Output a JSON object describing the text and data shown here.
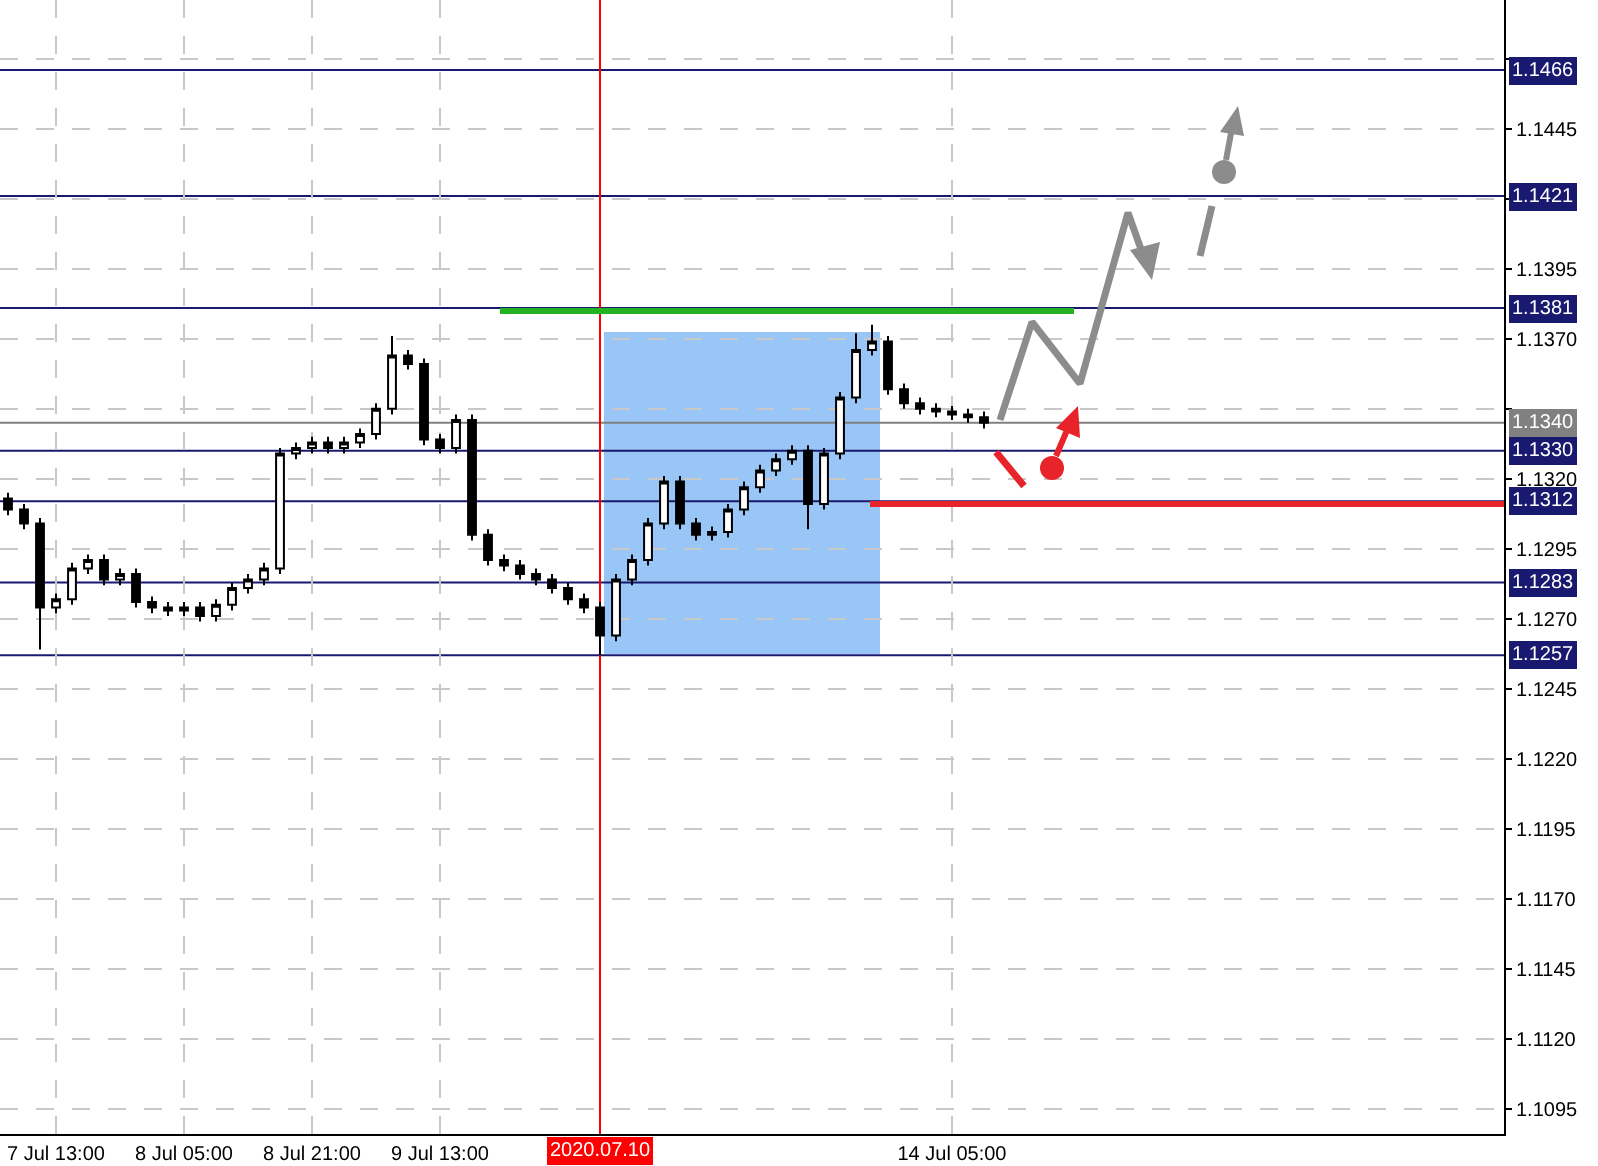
{
  "chart_data": {
    "type": "candlestick",
    "categories": [
      null,
      null,
      null,
      "7 Jul 13:00",
      null,
      null,
      null,
      null,
      null,
      null,
      null,
      "8 Jul 05:00",
      null,
      null,
      null,
      null,
      null,
      null,
      null,
      "8 Jul 21:00",
      null,
      null,
      null,
      null,
      null,
      null,
      null,
      "9 Jul 13:00",
      null,
      null,
      null,
      null,
      null,
      null,
      null,
      null,
      null,
      "2020.07.10",
      null,
      null,
      null,
      null,
      null,
      null,
      null,
      null,
      null,
      null,
      null,
      null,
      null,
      null,
      null,
      null,
      null,
      null,
      null,
      null,
      null,
      "14 Jul 05:00",
      null,
      null,
      null,
      null,
      null,
      null,
      null,
      null,
      null,
      null,
      null,
      null,
      null,
      null,
      null,
      null,
      null,
      null,
      null,
      null,
      null,
      null,
      null,
      null,
      null,
      null,
      null,
      null,
      null,
      null,
      null,
      null,
      null,
      null
    ],
    "ohlc": [
      [
        1.1313,
        1.1315,
        1.1307,
        1.1309
      ],
      [
        1.1309,
        1.1311,
        1.1302,
        1.1304
      ],
      [
        1.1304,
        1.1306,
        1.1259,
        1.1274
      ],
      [
        1.1274,
        1.1279,
        1.1272,
        1.1277
      ],
      [
        1.1277,
        1.129,
        1.1275,
        1.1288
      ],
      [
        1.1288,
        1.1293,
        1.1286,
        1.1291
      ],
      [
        1.1291,
        1.1293,
        1.1282,
        1.1284
      ],
      [
        1.1284,
        1.1288,
        1.1282,
        1.1286
      ],
      [
        1.1286,
        1.1288,
        1.1274,
        1.1276
      ],
      [
        1.1276,
        1.1278,
        1.1272,
        1.1274
      ],
      [
        1.1274,
        1.1276,
        1.1271,
        1.1273
      ],
      [
        1.1273,
        1.1276,
        1.1271,
        1.1274
      ],
      [
        1.1274,
        1.1276,
        1.1269,
        1.1271
      ],
      [
        1.1271,
        1.1277,
        1.1269,
        1.1275
      ],
      [
        1.1275,
        1.1283,
        1.1273,
        1.1281
      ],
      [
        1.1281,
        1.1286,
        1.1279,
        1.1284
      ],
      [
        1.1284,
        1.129,
        1.1282,
        1.1288
      ],
      [
        1.1288,
        1.1331,
        1.1286,
        1.1329
      ],
      [
        1.1329,
        1.1333,
        1.1327,
        1.1331
      ],
      [
        1.1331,
        1.1335,
        1.1329,
        1.1333
      ],
      [
        1.1333,
        1.1335,
        1.1329,
        1.1331
      ],
      [
        1.1331,
        1.1335,
        1.1329,
        1.1333
      ],
      [
        1.1333,
        1.1338,
        1.1331,
        1.1336
      ],
      [
        1.1336,
        1.1347,
        1.1334,
        1.1345
      ],
      [
        1.1345,
        1.1371,
        1.1343,
        1.1364
      ],
      [
        1.1364,
        1.1366,
        1.1359,
        1.1361
      ],
      [
        1.1361,
        1.1363,
        1.1332,
        1.1334
      ],
      [
        1.1334,
        1.1336,
        1.1329,
        1.1331
      ],
      [
        1.1331,
        1.1343,
        1.1329,
        1.1341
      ],
      [
        1.1341,
        1.1343,
        1.1298,
        1.13
      ],
      [
        1.13,
        1.1302,
        1.1289,
        1.1291
      ],
      [
        1.1291,
        1.1293,
        1.1287,
        1.1289
      ],
      [
        1.1289,
        1.1291,
        1.1284,
        1.1286
      ],
      [
        1.1286,
        1.1288,
        1.1282,
        1.1284
      ],
      [
        1.1284,
        1.1286,
        1.1279,
        1.1281
      ],
      [
        1.1281,
        1.1283,
        1.1275,
        1.1277
      ],
      [
        1.1277,
        1.1279,
        1.1272,
        1.1274
      ],
      [
        1.1274,
        1.1276,
        1.1257,
        1.1264
      ],
      [
        1.1264,
        1.1286,
        1.1262,
        1.1284
      ],
      [
        1.1284,
        1.1293,
        1.1282,
        1.1291
      ],
      [
        1.1291,
        1.1306,
        1.1289,
        1.1304
      ],
      [
        1.1304,
        1.1321,
        1.1302,
        1.1319
      ],
      [
        1.1319,
        1.1321,
        1.1302,
        1.1304
      ],
      [
        1.1304,
        1.1306,
        1.1298,
        1.13
      ],
      [
        1.13,
        1.1303,
        1.1298,
        1.1301
      ],
      [
        1.1301,
        1.1311,
        1.1299,
        1.1309
      ],
      [
        1.1309,
        1.1319,
        1.1307,
        1.1317
      ],
      [
        1.1317,
        1.1325,
        1.1315,
        1.1323
      ],
      [
        1.1323,
        1.1329,
        1.1321,
        1.1327
      ],
      [
        1.1327,
        1.1332,
        1.1325,
        1.133
      ],
      [
        1.133,
        1.1332,
        1.1302,
        1.1311
      ],
      [
        1.1311,
        1.1331,
        1.1309,
        1.1329
      ],
      [
        1.1329,
        1.1351,
        1.1327,
        1.1349
      ],
      [
        1.1349,
        1.1372,
        1.1347,
        1.1366
      ],
      [
        1.1366,
        1.1375,
        1.1364,
        1.1369
      ],
      [
        1.1369,
        1.1371,
        1.135,
        1.1352
      ],
      [
        1.1352,
        1.1354,
        1.1345,
        1.1347
      ],
      [
        1.1347,
        1.1349,
        1.1343,
        1.1345
      ],
      [
        1.1345,
        1.1347,
        1.1342,
        1.1344
      ],
      [
        1.1344,
        1.1346,
        1.1341,
        1.1343
      ],
      [
        1.1343,
        1.1345,
        1.134,
        1.1342
      ],
      [
        1.1342,
        1.1344,
        1.1338,
        1.134
      ],
      null,
      null,
      null,
      null,
      null,
      null,
      null,
      null,
      null,
      null,
      null,
      null,
      null,
      null,
      null,
      null,
      null,
      null,
      null,
      null,
      null,
      null,
      null,
      null,
      null,
      null,
      null,
      null,
      null,
      null,
      null,
      null
    ],
    "series": [
      {
        "type": "line",
        "color": "#8c8c8c",
        "values": [
          null,
          null,
          null,
          null,
          null,
          null,
          null,
          null,
          null,
          null,
          null,
          null,
          null,
          null,
          null,
          null,
          null,
          null,
          null,
          null,
          null,
          null,
          null,
          null,
          null,
          null,
          null,
          null,
          null,
          null,
          null,
          null,
          null,
          null,
          null,
          null,
          null,
          null,
          null,
          null,
          null,
          null,
          null,
          null,
          null,
          null,
          null,
          null,
          null,
          null,
          null,
          null,
          null,
          null,
          null,
          null,
          null,
          null,
          null,
          null,
          null,
          null,
          1.1341,
          null,
          1.1376,
          null,
          null,
          1.1354,
          null,
          null,
          1.1415,
          1.1399,
          null,
          null,
          null,
          null,
          null,
          null,
          null,
          null,
          null,
          null,
          null,
          null,
          null,
          null,
          null,
          null,
          null,
          null,
          null,
          null,
          null,
          null
        ]
      }
    ],
    "ylim": [
      1.1086,
      1.1491
    ],
    "yticks": [
      1.1095,
      {
        "value": 1.112,
        "label": "1.1120"
      },
      1.1145,
      {
        "value": 1.117,
        "label": "1.1170"
      },
      1.1195,
      {
        "value": 1.122,
        "label": "1.1220"
      },
      1.1245,
      {
        "value": 1.127,
        "label": "1.1270"
      },
      1.1295,
      {
        "value": 1.132,
        "label": "1.1320"
      },
      {
        "value": 1.1345,
        "label": null
      },
      {
        "value": 1.137,
        "label": "1.1370"
      },
      1.1395,
      {
        "value": 1.142,
        "label": null
      },
      1.1445,
      {
        "value": 1.147,
        "label": null
      }
    ],
    "grid": true,
    "legend": false,
    "ref_lines": [
      {
        "axis": "y",
        "value": 1.1466,
        "label": "1.1466",
        "color": "#191970"
      },
      {
        "axis": "y",
        "value": 1.1421,
        "label": "1.1421",
        "color": "#191970"
      },
      {
        "axis": "y",
        "value": 1.1381,
        "label": "1.1381",
        "color": "#191970"
      },
      {
        "axis": "y",
        "value": 1.134,
        "label": "1.1340",
        "color": "#808080"
      },
      {
        "axis": "y",
        "value": 1.133,
        "label": "1.1330",
        "color": "#191970"
      },
      {
        "axis": "y",
        "value": 1.1312,
        "label": "1.1312",
        "color": "#191970"
      },
      {
        "axis": "y",
        "value": 1.1283,
        "label": "1.1283",
        "color": "#191970"
      },
      {
        "axis": "y",
        "value": 1.1257,
        "label": "1.1257",
        "color": "#191970"
      },
      {
        "axis": "x",
        "value": "2020.07.10",
        "color": "#ff0000"
      }
    ]
  }
}
